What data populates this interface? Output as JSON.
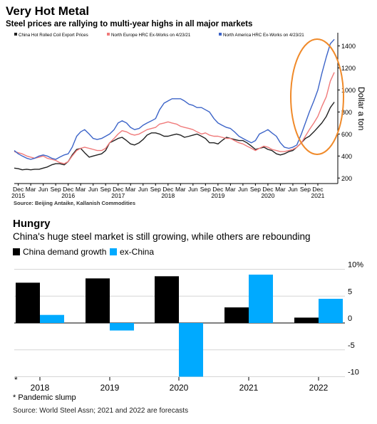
{
  "chart1": {
    "title": "Very Hot Metal",
    "subtitle": "Steel prices are rallying to multi-year highs in all major markets",
    "y_title": "Dollar a ton",
    "source": "Source: Beijing Antaike, Kallanish Commodities",
    "legend": [
      {
        "label": "China Hot Rolled Coil Export Prices",
        "color": "#222222"
      },
      {
        "label": "North Europe HRC Ex-Works on 4/23/21",
        "color": "#f07a7a"
      },
      {
        "label": "North America HRC Ex-Works on 4/23/21",
        "color": "#3c64c8"
      }
    ],
    "y_ticks": [
      "200",
      "400",
      "600",
      "800",
      "1000",
      "1200",
      "1400"
    ],
    "x_ticks": [
      {
        "t": 2015.0,
        "label": "Dec"
      },
      {
        "t": 2015.25,
        "label": "Mar"
      },
      {
        "t": 2015.5,
        "label": "Jun"
      },
      {
        "t": 2015.75,
        "label": "Sep"
      },
      {
        "t": 2016.0,
        "label": "Dec"
      },
      {
        "t": 2016.25,
        "label": "Mar"
      },
      {
        "t": 2016.5,
        "label": "Jun"
      },
      {
        "t": 2016.75,
        "label": "Sep"
      },
      {
        "t": 2017.0,
        "label": "Dec"
      },
      {
        "t": 2017.25,
        "label": "Mar"
      },
      {
        "t": 2017.5,
        "label": "Jun"
      },
      {
        "t": 2017.75,
        "label": "Sep"
      },
      {
        "t": 2018.0,
        "label": "Dec"
      },
      {
        "t": 2018.25,
        "label": "Mar"
      },
      {
        "t": 2018.5,
        "label": "Jun"
      },
      {
        "t": 2018.75,
        "label": "Sep"
      },
      {
        "t": 2019.0,
        "label": "Dec"
      },
      {
        "t": 2019.25,
        "label": "Mar"
      },
      {
        "t": 2019.5,
        "label": "Jun"
      },
      {
        "t": 2019.75,
        "label": "Sep"
      },
      {
        "t": 2020.0,
        "label": "Dec"
      },
      {
        "t": 2020.25,
        "label": "Mar"
      },
      {
        "t": 2020.5,
        "label": "Jun"
      },
      {
        "t": 2020.75,
        "label": "Sep"
      },
      {
        "t": 2021.0,
        "label": "Dec"
      }
    ],
    "x_years": [
      {
        "t": 2015.0,
        "label": "2015"
      },
      {
        "t": 2016.0,
        "label": "2016"
      },
      {
        "t": 2017.0,
        "label": "2017"
      },
      {
        "t": 2018.0,
        "label": "2018"
      },
      {
        "t": 2019.0,
        "label": "2019"
      },
      {
        "t": 2020.0,
        "label": "2020"
      },
      {
        "t": 2021.0,
        "label": "2021"
      }
    ]
  },
  "chart2": {
    "title": "Hungry",
    "subtitle": "China's huge steel market is still growing, while others are rebounding",
    "legend": [
      {
        "label": "China demand growth",
        "color": "#000000"
      },
      {
        "label": "ex-China",
        "color": "#00aaff"
      }
    ],
    "y_ticks": [
      "10%",
      "5",
      "0",
      "-5",
      "-10"
    ],
    "star": "*",
    "footnote": "* Pandemic slump",
    "source": "Source: World Steel Assn; 2021 and 2022 are forecasts"
  },
  "chart_data": [
    {
      "type": "line",
      "title": "Very Hot Metal",
      "subtitle": "Steel prices are rallying to multi-year highs in all major markets",
      "ylabel": "Dollar a ton",
      "ylim": [
        150,
        1520
      ],
      "xlim": [
        2014.92,
        2021.4
      ],
      "legend_position": "top",
      "grid": false,
      "annotation": "orange ellipse highlighting the 2020-2021 rally",
      "series": [
        {
          "name": "China Hot Rolled Coil Export Prices",
          "color": "#222222",
          "x": [
            2014.92,
            2015.0,
            2015.08,
            2015.17,
            2015.25,
            2015.33,
            2015.42,
            2015.5,
            2015.58,
            2015.67,
            2015.75,
            2015.83,
            2015.92,
            2016.0,
            2016.08,
            2016.17,
            2016.25,
            2016.33,
            2016.42,
            2016.5,
            2016.58,
            2016.67,
            2016.75,
            2016.83,
            2016.92,
            2017.0,
            2017.08,
            2017.17,
            2017.25,
            2017.33,
            2017.42,
            2017.5,
            2017.58,
            2017.67,
            2017.75,
            2017.83,
            2017.92,
            2018.0,
            2018.08,
            2018.17,
            2018.25,
            2018.33,
            2018.42,
            2018.5,
            2018.58,
            2018.67,
            2018.75,
            2018.83,
            2018.92,
            2019.0,
            2019.08,
            2019.17,
            2019.25,
            2019.33,
            2019.42,
            2019.5,
            2019.58,
            2019.67,
            2019.75,
            2019.83,
            2019.92,
            2020.0,
            2020.08,
            2020.17,
            2020.25,
            2020.33,
            2020.42,
            2020.5,
            2020.58,
            2020.67,
            2020.75,
            2020.83,
            2020.92,
            2021.0,
            2021.08,
            2021.17,
            2021.25,
            2021.33
          ],
          "values": [
            290,
            285,
            275,
            280,
            275,
            280,
            280,
            290,
            300,
            320,
            330,
            330,
            320,
            350,
            410,
            460,
            470,
            430,
            390,
            400,
            410,
            420,
            450,
            520,
            540,
            560,
            570,
            540,
            510,
            500,
            520,
            550,
            590,
            610,
            610,
            600,
            580,
            580,
            590,
            600,
            590,
            570,
            580,
            590,
            600,
            580,
            560,
            520,
            520,
            510,
            540,
            570,
            560,
            550,
            540,
            540,
            520,
            490,
            460,
            470,
            480,
            460,
            450,
            420,
            410,
            420,
            440,
            450,
            480,
            520,
            560,
            580,
            620,
            660,
            700,
            760,
            840,
            890
          ]
        },
        {
          "name": "North Europe HRC Ex-Works on 4/23/21",
          "color": "#f07a7a",
          "x": [
            2014.92,
            2015.0,
            2015.08,
            2015.17,
            2015.25,
            2015.33,
            2015.42,
            2015.5,
            2015.58,
            2015.67,
            2015.75,
            2015.83,
            2015.92,
            2016.0,
            2016.08,
            2016.17,
            2016.25,
            2016.33,
            2016.42,
            2016.5,
            2016.58,
            2016.67,
            2016.75,
            2016.83,
            2016.92,
            2017.0,
            2017.08,
            2017.17,
            2017.25,
            2017.33,
            2017.42,
            2017.5,
            2017.58,
            2017.67,
            2017.75,
            2017.83,
            2017.92,
            2018.0,
            2018.08,
            2018.17,
            2018.25,
            2018.33,
            2018.42,
            2018.5,
            2018.58,
            2018.67,
            2018.75,
            2018.83,
            2018.92,
            2019.0,
            2019.08,
            2019.17,
            2019.25,
            2019.33,
            2019.42,
            2019.5,
            2019.58,
            2019.67,
            2019.75,
            2019.83,
            2019.92,
            2020.0,
            2020.08,
            2020.17,
            2020.25,
            2020.33,
            2020.42,
            2020.5,
            2020.58,
            2020.67,
            2020.75,
            2020.83,
            2020.92,
            2021.0,
            2021.08,
            2021.17,
            2021.25,
            2021.33
          ],
          "values": [
            440,
            430,
            420,
            400,
            390,
            380,
            390,
            400,
            380,
            370,
            360,
            340,
            330,
            350,
            400,
            450,
            470,
            480,
            470,
            460,
            450,
            450,
            470,
            520,
            560,
            600,
            630,
            620,
            600,
            590,
            600,
            620,
            640,
            650,
            660,
            690,
            700,
            710,
            700,
            690,
            670,
            660,
            650,
            640,
            620,
            600,
            610,
            590,
            580,
            580,
            570,
            560,
            560,
            540,
            520,
            510,
            490,
            470,
            450,
            470,
            490,
            480,
            460,
            450,
            440,
            440,
            450,
            460,
            480,
            520,
            580,
            640,
            700,
            760,
            850,
            940,
            1080,
            1160
          ]
        },
        {
          "name": "North America HRC Ex-Works on 4/23/21",
          "color": "#3c64c8",
          "x": [
            2014.92,
            2015.0,
            2015.08,
            2015.17,
            2015.25,
            2015.33,
            2015.42,
            2015.5,
            2015.58,
            2015.67,
            2015.75,
            2015.83,
            2015.92,
            2016.0,
            2016.08,
            2016.17,
            2016.25,
            2016.33,
            2016.42,
            2016.5,
            2016.58,
            2016.67,
            2016.75,
            2016.83,
            2016.92,
            2017.0,
            2017.08,
            2017.17,
            2017.25,
            2017.33,
            2017.42,
            2017.5,
            2017.58,
            2017.67,
            2017.75,
            2017.83,
            2017.92,
            2018.0,
            2018.08,
            2018.17,
            2018.25,
            2018.33,
            2018.42,
            2018.5,
            2018.58,
            2018.67,
            2018.75,
            2018.83,
            2018.92,
            2019.0,
            2019.08,
            2019.17,
            2019.25,
            2019.33,
            2019.42,
            2019.5,
            2019.58,
            2019.67,
            2019.75,
            2019.83,
            2019.92,
            2020.0,
            2020.08,
            2020.17,
            2020.25,
            2020.33,
            2020.42,
            2020.5,
            2020.58,
            2020.67,
            2020.75,
            2020.83,
            2020.92,
            2021.0,
            2021.08,
            2021.17,
            2021.25,
            2021.33
          ],
          "values": [
            450,
            420,
            400,
            380,
            370,
            380,
            400,
            410,
            400,
            380,
            370,
            390,
            410,
            420,
            480,
            580,
            620,
            640,
            600,
            560,
            550,
            560,
            580,
            600,
            640,
            700,
            720,
            700,
            660,
            640,
            650,
            680,
            700,
            720,
            740,
            820,
            880,
            900,
            920,
            920,
            920,
            900,
            870,
            860,
            840,
            840,
            820,
            800,
            740,
            700,
            680,
            660,
            650,
            620,
            580,
            560,
            540,
            520,
            540,
            600,
            620,
            640,
            610,
            580,
            520,
            480,
            470,
            480,
            500,
            600,
            700,
            800,
            900,
            1000,
            1150,
            1300,
            1420,
            1460
          ]
        }
      ]
    },
    {
      "type": "bar",
      "title": "Hungry",
      "subtitle": "China's huge steel market is still growing, while others are rebounding",
      "ylabel": "%",
      "ylim": [
        -11,
        11
      ],
      "categories": [
        "2018",
        "2019",
        "2020",
        "2021",
        "2022"
      ],
      "annotations": [
        {
          "category": "2020",
          "text": "*",
          "note": "Pandemic slump"
        }
      ],
      "legend_position": "top-left",
      "grid": true,
      "series": [
        {
          "name": "China demand growth",
          "color": "#000000",
          "values": [
            7.5,
            8.3,
            8.7,
            2.9,
            1.0
          ]
        },
        {
          "name": "ex-China",
          "color": "#00aaff",
          "values": [
            1.5,
            -1.4,
            -10.0,
            9.0,
            4.5
          ]
        }
      ]
    }
  ]
}
